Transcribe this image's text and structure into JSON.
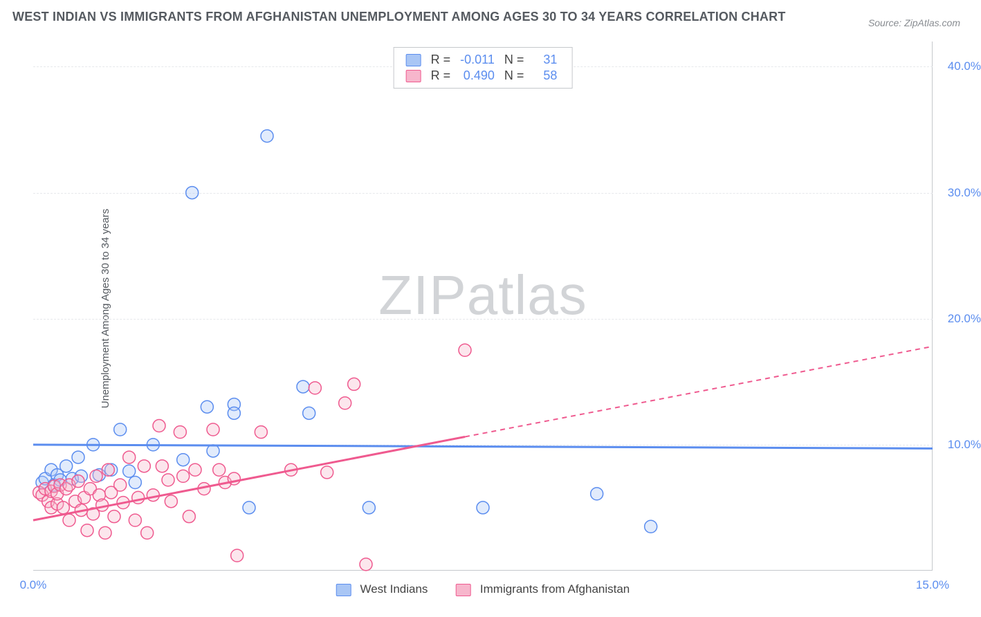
{
  "title": "WEST INDIAN VS IMMIGRANTS FROM AFGHANISTAN UNEMPLOYMENT AMONG AGES 30 TO 34 YEARS CORRELATION CHART",
  "source": "Source: ZipAtlas.com",
  "y_axis_label": "Unemployment Among Ages 30 to 34 years",
  "watermark_bold": "ZIP",
  "watermark_thin": "atlas",
  "chart": {
    "type": "scatter",
    "xlim": [
      0,
      15
    ],
    "ylim": [
      0,
      42
    ],
    "x_ticks": [
      0,
      15
    ],
    "x_tick_labels": [
      "0.0%",
      "15.0%"
    ],
    "y_ticks": [
      10,
      20,
      30,
      40
    ],
    "y_tick_labels": [
      "10.0%",
      "20.0%",
      "30.0%",
      "40.0%"
    ],
    "background_color": "#ffffff",
    "grid_color": "#e6e8eb",
    "axis_color": "#c5c8cc",
    "tick_label_color": "#5b8def",
    "marker_radius": 9,
    "marker_stroke_width": 1.5,
    "marker_fill_opacity": 0.35,
    "trend_line_width": 3,
    "series": [
      {
        "name": "West Indians",
        "color_stroke": "#5b8def",
        "color_fill": "#a9c6f5",
        "R_label": "R = ",
        "R_value": "-0.011",
        "N_label": "N = ",
        "N_value": "31",
        "trend": {
          "x1": 0,
          "y1": 10.0,
          "x2": 15,
          "y2": 9.7,
          "dash_from_x": 15
        },
        "points": [
          [
            0.15,
            7.0
          ],
          [
            0.2,
            7.3
          ],
          [
            0.3,
            8.0
          ],
          [
            0.35,
            6.8
          ],
          [
            0.4,
            7.6
          ],
          [
            0.45,
            7.2
          ],
          [
            0.55,
            8.3
          ],
          [
            0.65,
            7.3
          ],
          [
            0.75,
            9.0
          ],
          [
            0.8,
            7.5
          ],
          [
            1.0,
            10.0
          ],
          [
            1.1,
            7.6
          ],
          [
            1.3,
            8.0
          ],
          [
            1.45,
            11.2
          ],
          [
            1.6,
            7.9
          ],
          [
            1.7,
            7.0
          ],
          [
            2.0,
            10.0
          ],
          [
            2.5,
            8.8
          ],
          [
            2.65,
            30.0
          ],
          [
            2.9,
            13.0
          ],
          [
            3.0,
            9.5
          ],
          [
            3.35,
            13.2
          ],
          [
            3.35,
            12.5
          ],
          [
            3.6,
            5.0
          ],
          [
            3.9,
            34.5
          ],
          [
            4.5,
            14.6
          ],
          [
            4.6,
            12.5
          ],
          [
            5.6,
            5.0
          ],
          [
            7.5,
            5.0
          ],
          [
            9.4,
            6.1
          ],
          [
            10.3,
            3.5
          ]
        ]
      },
      {
        "name": "Immigrants from Afghanistan",
        "color_stroke": "#ef5a8f",
        "color_fill": "#f7b6cc",
        "R_label": "R = ",
        "R_value": "0.490",
        "N_label": "N = ",
        "N_value": "58",
        "trend": {
          "x1": 0,
          "y1": 4.0,
          "x2": 15,
          "y2": 17.8,
          "dash_from_x": 7.2
        },
        "points": [
          [
            0.1,
            6.2
          ],
          [
            0.15,
            6.0
          ],
          [
            0.2,
            6.5
          ],
          [
            0.25,
            5.5
          ],
          [
            0.3,
            6.3
          ],
          [
            0.3,
            5.0
          ],
          [
            0.35,
            6.7
          ],
          [
            0.4,
            5.3
          ],
          [
            0.4,
            6.1
          ],
          [
            0.45,
            6.8
          ],
          [
            0.5,
            5.0
          ],
          [
            0.55,
            6.5
          ],
          [
            0.6,
            4.0
          ],
          [
            0.6,
            6.8
          ],
          [
            0.7,
            5.5
          ],
          [
            0.75,
            7.1
          ],
          [
            0.8,
            4.8
          ],
          [
            0.85,
            5.8
          ],
          [
            0.9,
            3.2
          ],
          [
            0.95,
            6.5
          ],
          [
            1.0,
            4.5
          ],
          [
            1.05,
            7.5
          ],
          [
            1.1,
            6.0
          ],
          [
            1.15,
            5.2
          ],
          [
            1.2,
            3.0
          ],
          [
            1.25,
            8.0
          ],
          [
            1.3,
            6.2
          ],
          [
            1.35,
            4.3
          ],
          [
            1.45,
            6.8
          ],
          [
            1.5,
            5.4
          ],
          [
            1.6,
            9.0
          ],
          [
            1.7,
            4.0
          ],
          [
            1.75,
            5.8
          ],
          [
            1.85,
            8.3
          ],
          [
            1.9,
            3.0
          ],
          [
            2.0,
            6.0
          ],
          [
            2.1,
            11.5
          ],
          [
            2.15,
            8.3
          ],
          [
            2.25,
            7.2
          ],
          [
            2.3,
            5.5
          ],
          [
            2.45,
            11.0
          ],
          [
            2.5,
            7.5
          ],
          [
            2.6,
            4.3
          ],
          [
            2.7,
            8.0
          ],
          [
            2.85,
            6.5
          ],
          [
            3.0,
            11.2
          ],
          [
            3.1,
            8.0
          ],
          [
            3.2,
            7.0
          ],
          [
            3.35,
            7.3
          ],
          [
            3.4,
            1.2
          ],
          [
            3.8,
            11.0
          ],
          [
            4.3,
            8.0
          ],
          [
            4.7,
            14.5
          ],
          [
            4.9,
            7.8
          ],
          [
            5.2,
            13.3
          ],
          [
            5.35,
            14.8
          ],
          [
            5.55,
            0.5
          ],
          [
            7.2,
            17.5
          ]
        ]
      }
    ]
  },
  "legend_bottom": {
    "items": [
      {
        "label": "West Indians",
        "stroke": "#5b8def",
        "fill": "#a9c6f5"
      },
      {
        "label": "Immigrants from Afghanistan",
        "stroke": "#ef5a8f",
        "fill": "#f7b6cc"
      }
    ]
  }
}
